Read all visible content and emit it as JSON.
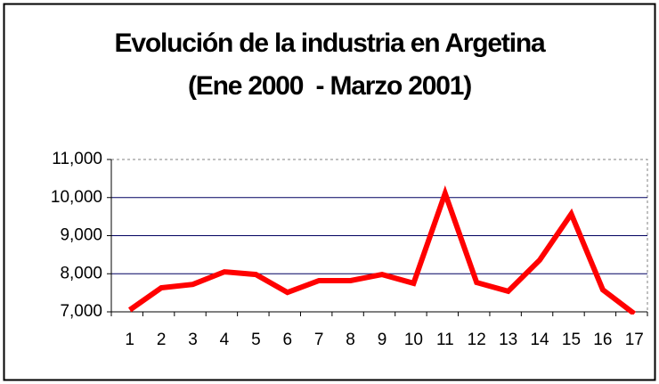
{
  "chart_data": {
    "type": "line",
    "title": "Evolución de la industria en Argetina",
    "subtitle": "(Ene 2000  - Marzo 2001)",
    "categories": [
      "1",
      "2",
      "3",
      "4",
      "5",
      "6",
      "7",
      "8",
      "9",
      "10",
      "11",
      "12",
      "13",
      "14",
      "15",
      "16",
      "17"
    ],
    "values": [
      7050,
      7630,
      7720,
      8050,
      7980,
      7510,
      7820,
      7820,
      7980,
      7750,
      10110,
      7770,
      7540,
      8360,
      9570,
      7580,
      6950
    ],
    "color": "#ff0000",
    "ylim": [
      7000,
      11000
    ],
    "yticks": [
      {
        "value": 7000,
        "label": "7,000"
      },
      {
        "value": 8000,
        "label": "8,000"
      },
      {
        "value": 9000,
        "label": "9,000"
      },
      {
        "value": 10000,
        "label": "10,000"
      },
      {
        "value": 11000,
        "label": "11,000"
      }
    ],
    "grid": true
  }
}
